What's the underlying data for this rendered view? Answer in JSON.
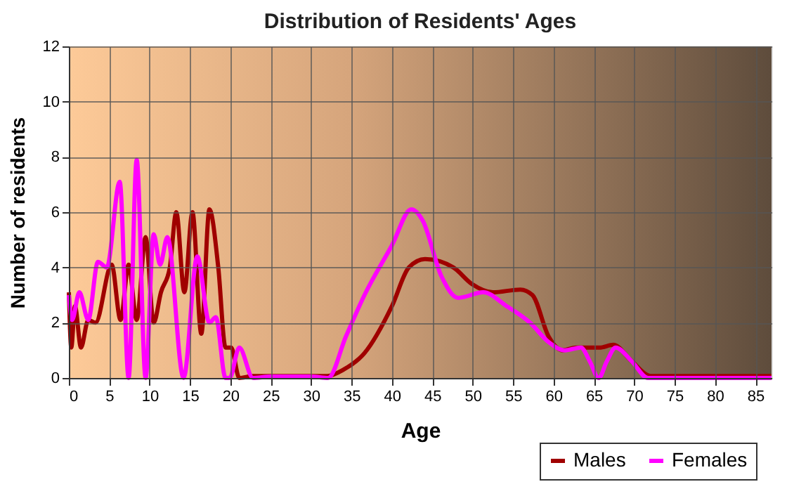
{
  "chart_data": {
    "type": "line",
    "title": "Distribution of Residents' Ages",
    "xlabel": "Age",
    "ylabel": "Number of residents",
    "xlim": [
      0,
      87
    ],
    "xticks": [
      0,
      5,
      10,
      15,
      20,
      25,
      30,
      35,
      40,
      45,
      50,
      55,
      60,
      65,
      70,
      75,
      80,
      85
    ],
    "ylim": [
      0,
      12
    ],
    "yticks": [
      0,
      2,
      4,
      6,
      8,
      10,
      12
    ],
    "grid": true,
    "legend": "bottom right",
    "line_style": "solid",
    "marker": "none",
    "series": [
      {
        "name": "Males",
        "color": "#a00000",
        "x": [
          0,
          0.3,
          0.75,
          1.5,
          2.4,
          3.3,
          5.3,
          6.4,
          7.4,
          8.4,
          9.5,
          10.5,
          11.4,
          12.5,
          13.3,
          14.3,
          15.3,
          16.4,
          17.4,
          18.5,
          19.4,
          20.1,
          21.1,
          22.8,
          25,
          30,
          32,
          34,
          36.6,
          40,
          42.1,
          44.1,
          47.6,
          49.9,
          52.5,
          55.9,
          57.4,
          59.4,
          61.1,
          62.8,
          65.7,
          67.4,
          69.7,
          72,
          75,
          80,
          87
        ],
        "values": [
          3.1,
          1.1,
          2.6,
          1.1,
          2.1,
          2,
          4.1,
          2.1,
          4.1,
          2.1,
          5.1,
          2,
          3.1,
          4,
          6,
          3.1,
          6,
          1.6,
          6.1,
          4,
          1.1,
          1.1,
          0,
          0.07,
          0.07,
          0.07,
          0.07,
          0.3,
          0.9,
          2.6,
          4,
          4.3,
          4,
          3.4,
          3.1,
          3.2,
          3,
          1.5,
          1,
          1.1,
          1.1,
          1.2,
          0.6,
          0.07,
          0.07,
          0.07,
          0.07
        ]
      },
      {
        "name": "Females",
        "color": "#ff00ff",
        "x": [
          0,
          0.4,
          1.3,
          2.4,
          3.6,
          4.7,
          6.3,
          7.4,
          8.4,
          9.5,
          10.5,
          11.3,
          12.2,
          14.2,
          15.9,
          17.4,
          18.2,
          19.4,
          19.9,
          21.1,
          22.8,
          25,
          30,
          32.1,
          34.3,
          36.6,
          40,
          42.4,
          43.8,
          46.1,
          48.2,
          51.3,
          54.2,
          57.1,
          59.4,
          61.4,
          63.4,
          64.5,
          65.6,
          66.6,
          67.7,
          69.7,
          71.7,
          75,
          80,
          87
        ],
        "values": [
          3,
          2.1,
          3.1,
          2.1,
          4.2,
          4,
          7.1,
          0,
          7.9,
          0,
          5.2,
          4.1,
          5.1,
          0,
          4.4,
          2,
          2.2,
          0,
          0,
          1.1,
          0,
          0.05,
          0.05,
          0,
          1.5,
          3,
          4.8,
          6.1,
          5.7,
          3.7,
          2.9,
          3.1,
          2.6,
          2,
          1.3,
          1,
          1.1,
          0.6,
          0,
          0.6,
          1.1,
          0.6,
          0,
          0,
          0,
          0
        ]
      }
    ]
  }
}
